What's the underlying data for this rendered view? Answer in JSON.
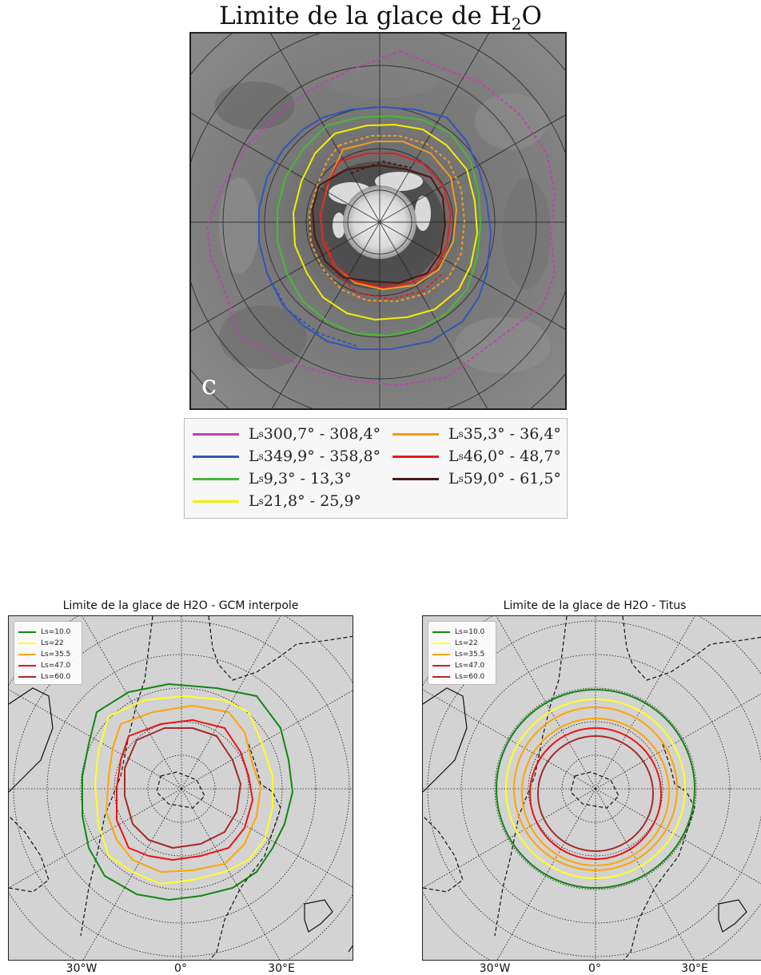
{
  "top_panel": {
    "title": "Limite de la glace de H",
    "title_sub": "2",
    "title_end": "O",
    "panel_letter": "c",
    "legend": [
      {
        "label": "L",
        "sub": "s",
        "range": " 300,7° - 308,4°",
        "color": "#c040b0"
      },
      {
        "label": "L",
        "sub": "s",
        "range": " 349,9° - 358,8°",
        "color": "#3355bb"
      },
      {
        "label": "L",
        "sub": "s",
        "range": " 9,3° - 13,3°",
        "color": "#44bb33"
      },
      {
        "label": "L",
        "sub": "s",
        "range": " 21,8° - 25,9°",
        "color": "#f0f000"
      },
      {
        "label": "L",
        "sub": "s",
        "range": " 35,3° - 36,4°",
        "color": "#f59a1a"
      },
      {
        "label": "L",
        "sub": "s",
        "range": " 46,0° - 48,7°",
        "color": "#e02020"
      },
      {
        "label": "L",
        "sub": "s",
        "range": " 59,0° - 61,5°",
        "color": "#4a1a10"
      }
    ]
  },
  "gcm_panel": {
    "title": "Limite de la glace de H2O - GCM interpole",
    "legend": [
      {
        "label": "Ls=10.0",
        "color": "#118811"
      },
      {
        "label": "Ls=22",
        "color": "#ffff22"
      },
      {
        "label": "Ls=35.5",
        "color": "#ffa500"
      },
      {
        "label": "Ls=47.0",
        "color": "#ee1111"
      },
      {
        "label": "Ls=60.0",
        "color": "#a52a2a"
      }
    ]
  },
  "titus_panel": {
    "title": "Limite de la glace de H2O - Titus",
    "legend": [
      {
        "label": "Ls=10.0",
        "color": "#118811"
      },
      {
        "label": "Ls=22",
        "color": "#ffff22"
      },
      {
        "label": "Ls=35.5",
        "color": "#ffa500"
      },
      {
        "label": "Ls=47.0",
        "color": "#ee1111"
      },
      {
        "label": "Ls=60.0",
        "color": "#a52a2a"
      }
    ]
  },
  "lon_ticks": [
    "30°W",
    "0°",
    "30°E"
  ]
}
